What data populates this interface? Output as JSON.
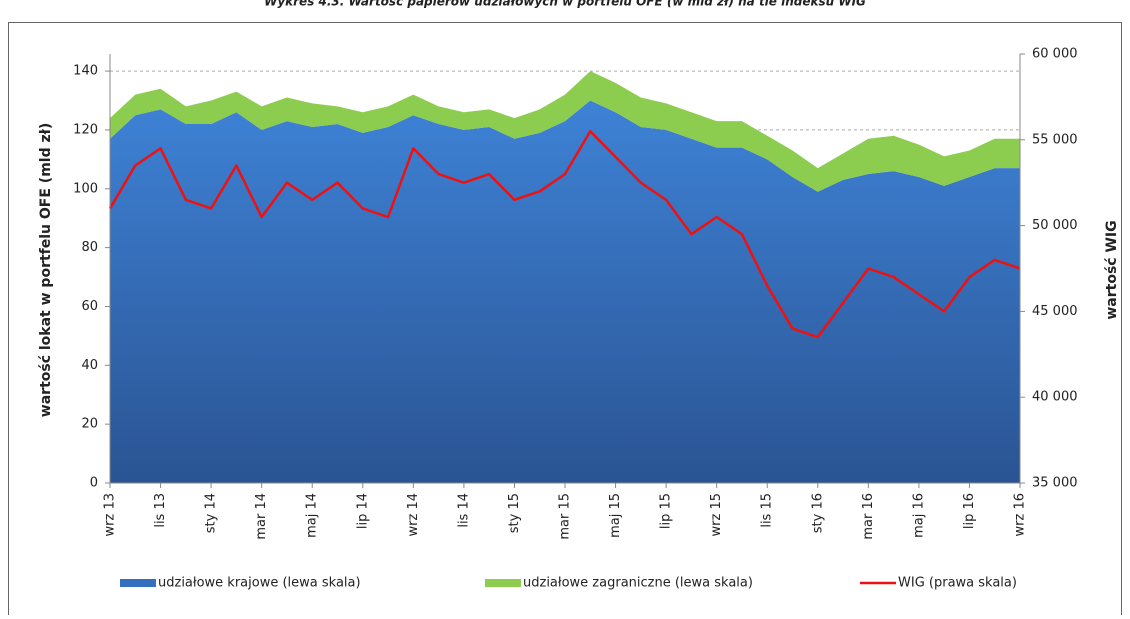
{
  "chart_data": {
    "type": "stacked-area-line",
    "title": "Wykres 4.3. Wartość papierów udziałowych w portfelu OFE (w mld zł) na tle indeksu WIG",
    "y_label": "wartość lokat w portfelu OFE  (mld zł)",
    "y2_label": "wartość WIG",
    "categories": [
      "wrz 13",
      null,
      "lis 13",
      null,
      "sty 14",
      null,
      "mar 14",
      null,
      "maj 14",
      null,
      "lip 14",
      null,
      "wrz 14",
      null,
      "lis 14",
      null,
      "sty 15",
      null,
      "mar 15",
      null,
      "maj 15",
      null,
      "lip 15",
      null,
      "wrz 15",
      null,
      "lis 15",
      null,
      "sty 16",
      null,
      "mar 16",
      null,
      "maj 16",
      null,
      "lip 16",
      null,
      "wrz 16"
    ],
    "series": [
      {
        "name": "udziałowe krajowe (lewa skala)",
        "color": "#3570c0",
        "kind": "area",
        "values": [
          117,
          125,
          127,
          122,
          122,
          126,
          120,
          123,
          121,
          122,
          119,
          121,
          125,
          122,
          120,
          121,
          117,
          119,
          123,
          130,
          126,
          121,
          120,
          117,
          114,
          114,
          110,
          104,
          99,
          103,
          105,
          106,
          104,
          101,
          104,
          107,
          107
        ]
      },
      {
        "name": "udziałowe zagraniczne (lewa skala)",
        "color": "#8ccc4f",
        "kind": "area",
        "values": [
          7,
          7,
          7,
          6,
          8,
          7,
          8,
          8,
          8,
          6,
          7,
          7,
          7,
          6,
          6,
          6,
          7,
          8,
          9,
          10,
          10,
          10,
          9,
          9,
          9,
          9,
          8,
          9,
          8,
          9,
          12,
          12,
          11,
          10,
          9,
          10,
          10
        ]
      },
      {
        "name": "WIG (prawa skala)",
        "color": "#ee1111",
        "kind": "line",
        "axis": "y2",
        "values": [
          51000,
          53500,
          54500,
          51500,
          51000,
          53500,
          50500,
          52500,
          51500,
          52500,
          51000,
          50500,
          54500,
          53000,
          52500,
          53000,
          51500,
          52000,
          53000,
          55500,
          54000,
          52500,
          51500,
          49500,
          50500,
          49500,
          46500,
          44000,
          43500,
          45500,
          47500,
          47000,
          46000,
          45000,
          47000,
          48000,
          47500
        ]
      }
    ],
    "ylim": [
      0,
      145.8
    ],
    "yticks": [
      0,
      20,
      40,
      60,
      80,
      100,
      120,
      140
    ],
    "y2lim": [
      35000,
      60000
    ],
    "y2ticks": [
      {
        "value": 35000,
        "label": "35 000"
      },
      {
        "value": 40000,
        "label": "40 000"
      },
      {
        "value": 45000,
        "label": "45 000"
      },
      {
        "value": 50000,
        "label": "50 000"
      },
      {
        "value": 55000,
        "label": "55 000"
      },
      {
        "value": 60000,
        "label": "60 000"
      }
    ],
    "grid": true
  }
}
